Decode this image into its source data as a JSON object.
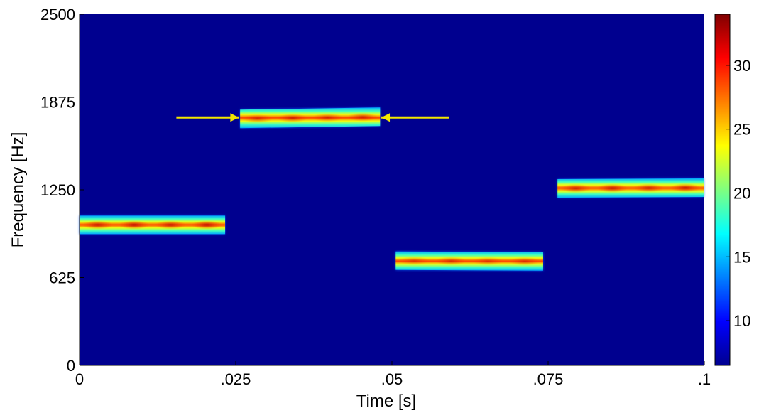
{
  "chart_data": {
    "type": "heatmap",
    "title": "",
    "xlabel": "Time [s]",
    "ylabel": "Frequency [Hz]",
    "xlim": [
      0,
      0.1
    ],
    "ylim": [
      0,
      2500
    ],
    "x_ticks": [
      {
        "value": 0,
        "label": "0"
      },
      {
        "value": 0.025,
        "label": ".025"
      },
      {
        "value": 0.05,
        "label": ".05"
      },
      {
        "value": 0.075,
        "label": ".075"
      },
      {
        "value": 0.1,
        "label": ".1"
      }
    ],
    "y_ticks": [
      {
        "value": 0,
        "label": "0"
      },
      {
        "value": 625,
        "label": "625"
      },
      {
        "value": 1250,
        "label": "1250"
      },
      {
        "value": 1875,
        "label": "1875"
      },
      {
        "value": 2500,
        "label": "2500"
      }
    ],
    "colorbar": {
      "min": 6.5,
      "max": 34,
      "colormap": "jet",
      "ticks": [
        {
          "value": 10,
          "label": "10"
        },
        {
          "value": 15,
          "label": "15"
        },
        {
          "value": 20,
          "label": "20"
        },
        {
          "value": 25,
          "label": "25"
        },
        {
          "value": 30,
          "label": "30"
        }
      ]
    },
    "background_level": 6.5,
    "tones": [
      {
        "t_start": 0.0,
        "t_end": 0.0233,
        "freq_hz": 1000,
        "freq_end_hz": 1000,
        "peak_level": 33
      },
      {
        "t_start": 0.0257,
        "t_end": 0.0481,
        "freq_hz": 1755,
        "freq_end_hz": 1770,
        "peak_level": 31
      },
      {
        "t_start": 0.0506,
        "t_end": 0.0742,
        "freq_hz": 745,
        "freq_end_hz": 740,
        "peak_level": 29
      },
      {
        "t_start": 0.0765,
        "t_end": 0.0999,
        "freq_hz": 1260,
        "freq_end_hz": 1265,
        "peak_level": 32
      }
    ],
    "annotations": [
      {
        "type": "arrow",
        "direction": "right",
        "color": "#f2e600",
        "x_from": 0.0155,
        "x_to": 0.0255,
        "y": 1765
      },
      {
        "type": "arrow",
        "direction": "left",
        "color": "#f2e600",
        "x_from": 0.0592,
        "x_to": 0.0483,
        "y": 1765
      }
    ]
  }
}
